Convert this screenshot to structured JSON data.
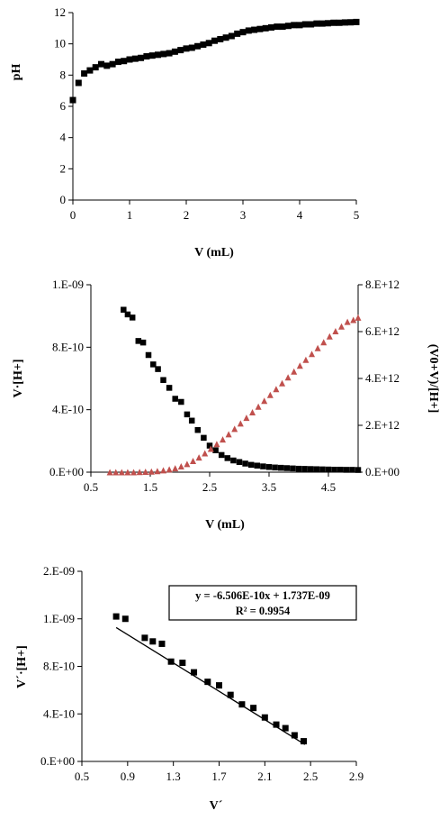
{
  "chart_data": [
    {
      "type": "scatter",
      "xlabel": "V (mL)",
      "ylabel": "pH",
      "xlim": [
        0,
        5
      ],
      "ylim": [
        0,
        12
      ],
      "xticks": [
        "0",
        "1",
        "2",
        "3",
        "4",
        "5"
      ],
      "yticks": [
        "0",
        "2",
        "4",
        "6",
        "8",
        "10",
        "12"
      ],
      "grid": false,
      "series": [
        {
          "color": "#000000",
          "marker": "square",
          "x": [
            0,
            0.1,
            0.2,
            0.3,
            0.4,
            0.5,
            0.6,
            0.7,
            0.8,
            0.9,
            1.0,
            1.1,
            1.2,
            1.3,
            1.4,
            1.5,
            1.6,
            1.7,
            1.8,
            1.9,
            2.0,
            2.1,
            2.2,
            2.3,
            2.4,
            2.5,
            2.6,
            2.7,
            2.8,
            2.9,
            3.0,
            3.1,
            3.2,
            3.3,
            3.4,
            3.5,
            3.6,
            3.7,
            3.8,
            3.9,
            4.0,
            4.1,
            4.2,
            4.3,
            4.4,
            4.5,
            4.6,
            4.7,
            4.8,
            4.9,
            5.0
          ],
          "y": [
            6.4,
            7.5,
            8.1,
            8.3,
            8.5,
            8.7,
            8.6,
            8.7,
            8.85,
            8.9,
            9.0,
            9.05,
            9.1,
            9.2,
            9.25,
            9.3,
            9.35,
            9.4,
            9.5,
            9.6,
            9.7,
            9.75,
            9.85,
            9.95,
            10.05,
            10.2,
            10.3,
            10.4,
            10.5,
            10.65,
            10.75,
            10.85,
            10.9,
            10.95,
            11.0,
            11.05,
            11.1,
            11.1,
            11.15,
            11.2,
            11.2,
            11.25,
            11.25,
            11.3,
            11.3,
            11.32,
            11.35,
            11.35,
            11.37,
            11.38,
            11.4
          ]
        }
      ]
    },
    {
      "type": "scatter",
      "xlabel": "V (mL)",
      "ylabel": "V·[H+]",
      "ylabel_right": "(V0+V)/[H+]",
      "xlim": [
        0.5,
        5
      ],
      "ylim": [
        0,
        1.2e-09
      ],
      "ylim_right": [
        0,
        8000000000000.0
      ],
      "xticks": [
        "0.5",
        "1.5",
        "2.5",
        "3.5",
        "4.5"
      ],
      "yticks": [
        "0.E+00",
        "4.E-10",
        "8.E-10",
        "1.E-09"
      ],
      "yticks_right": [
        "0.E+00",
        "2.E+12",
        "4.E+12",
        "6.E+12",
        "8.E+12"
      ],
      "grid": false,
      "series": [
        {
          "axis": "left",
          "color": "#000000",
          "marker": "square",
          "x": [
            1.05,
            1.12,
            1.2,
            1.3,
            1.38,
            1.47,
            1.55,
            1.63,
            1.72,
            1.82,
            1.92,
            2.02,
            2.12,
            2.2,
            2.3,
            2.4,
            2.5,
            2.6,
            2.7,
            2.8,
            2.9,
            3.0,
            3.1,
            3.2,
            3.3,
            3.4,
            3.5,
            3.6,
            3.7,
            3.8,
            3.9,
            4.0,
            4.1,
            4.2,
            4.3,
            4.4,
            4.5,
            4.6,
            4.7,
            4.8,
            4.9,
            5.0
          ],
          "y": [
            1.04e-09,
            1.01e-09,
            9.9e-10,
            8.4e-10,
            8.3e-10,
            7.5e-10,
            6.9e-10,
            6.6e-10,
            5.9e-10,
            5.4e-10,
            4.7e-10,
            4.5e-10,
            3.7e-10,
            3.3e-10,
            2.7e-10,
            2.2e-10,
            1.7e-10,
            1.4e-10,
            1.1e-10,
            9e-11,
            7.5e-11,
            6.5e-11,
            5.5e-11,
            4.7e-11,
            4.2e-11,
            3.7e-11,
            3.3e-11,
            3e-11,
            2.8e-11,
            2.6e-11,
            2.4e-11,
            2.2e-11,
            2.1e-11,
            2e-11,
            1.9e-11,
            1.8e-11,
            1.7e-11,
            1.6e-11,
            1.6e-11,
            1.5e-11,
            1.5e-11,
            1.4e-11
          ]
        },
        {
          "axis": "right",
          "color": "#c0504d",
          "marker": "triangle",
          "x": [
            0.82,
            0.92,
            1.02,
            1.12,
            1.22,
            1.32,
            1.42,
            1.52,
            1.62,
            1.72,
            1.82,
            1.92,
            2.02,
            2.12,
            2.22,
            2.32,
            2.42,
            2.52,
            2.62,
            2.72,
            2.82,
            2.92,
            3.02,
            3.12,
            3.22,
            3.32,
            3.42,
            3.52,
            3.62,
            3.72,
            3.82,
            3.92,
            4.02,
            4.12,
            4.22,
            4.32,
            4.42,
            4.52,
            4.62,
            4.72,
            4.82,
            4.92,
            5.0
          ],
          "y": [
            0,
            0,
            0,
            0,
            0,
            10000000000.0,
            20000000000.0,
            30000000000.0,
            50000000000.0,
            80000000000.0,
            120000000000.0,
            170000000000.0,
            250000000000.0,
            350000000000.0,
            480000000000.0,
            630000000000.0,
            810000000000.0,
            1000000000000.0,
            1200000000000.0,
            1400000000000.0,
            1620000000000.0,
            1850000000000.0,
            2080000000000.0,
            2320000000000.0,
            2560000000000.0,
            2800000000000.0,
            3050000000000.0,
            3300000000000.0,
            3550000000000.0,
            3800000000000.0,
            4050000000000.0,
            4300000000000.0,
            4550000000000.0,
            4800000000000.0,
            5050000000000.0,
            5300000000000.0,
            5550000000000.0,
            5800000000000.0,
            6020000000000.0,
            6220000000000.0,
            6420000000000.0,
            6500000000000.0,
            6600000000000.0
          ]
        }
      ]
    },
    {
      "type": "scatter",
      "xlabel": "V´",
      "ylabel": "V´·[H+]",
      "xlim": [
        0.5,
        2.9
      ],
      "ylim": [
        0,
        1.6e-09
      ],
      "xticks": [
        "0.5",
        "0.9",
        "1.3",
        "1.7",
        "2.1",
        "2.5",
        "2.9"
      ],
      "yticks": [
        "0.E+00",
        "4.E-10",
        "8.E-10",
        "1.E-09",
        "2.E-09"
      ],
      "grid": false,
      "annotation": [
        "y = -6.506E-10x + 1.737E-09",
        "R² = 0.9954"
      ],
      "trendline": {
        "slope": -6.506e-10,
        "intercept": 1.737e-09,
        "x_range": [
          0.8,
          2.45
        ]
      },
      "series": [
        {
          "color": "#000000",
          "marker": "square",
          "x": [
            0.8,
            0.88,
            1.05,
            1.12,
            1.2,
            1.28,
            1.38,
            1.48,
            1.6,
            1.7,
            1.8,
            1.9,
            2.0,
            2.1,
            2.2,
            2.28,
            2.36,
            2.44
          ],
          "y": [
            1.22e-09,
            1.2e-09,
            1.04e-09,
            1.01e-09,
            9.9e-10,
            8.4e-10,
            8.3e-10,
            7.5e-10,
            6.7e-10,
            6.4e-10,
            5.6e-10,
            4.8e-10,
            4.5e-10,
            3.7e-10,
            3.1e-10,
            2.8e-10,
            2.2e-10,
            1.7e-10
          ]
        }
      ]
    }
  ]
}
